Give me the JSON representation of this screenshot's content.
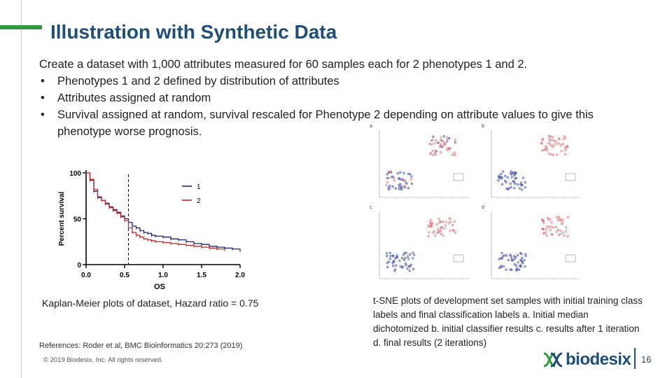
{
  "slide": {
    "title": "Illustration with Synthetic Data",
    "intro": "Create a dataset with 1,000 attributes measured for 60 samples each for 2 phenotypes 1 and 2.",
    "bullets": [
      "Phenotypes 1 and 2 defined by distribution of attributes",
      "Attributes assigned at random",
      "Survival assigned at random, survival rescaled for Phenotype 2 depending on attribute values to give this phenotype worse prognosis."
    ],
    "km_caption": "Kaplan-Meier plots of dataset, Hazard ratio = 0.75",
    "tsne_caption": "t-SNE plots of development set samples with initial training class labels and final classification labels a. Initial median dichotomized   b. initial classifier results c. results after 1 iteration   d. final results (2 iterations)",
    "tsne_panel_labels": [
      "a",
      "b",
      "c",
      "d"
    ],
    "references": "References: Roder et al, BMC Bioinformatics 20:273 (2019)",
    "copyright": "© 2019 Biodesix, Inc. All rights reserved.",
    "logo_text": "biodesix",
    "page_number": "16"
  },
  "colors": {
    "title": "#1f4e79",
    "accent": "#2e9b3e",
    "series1": "#1a237e",
    "series2": "#c62828"
  },
  "chart_data": {
    "type": "line",
    "title": "",
    "xlabel": "OS",
    "ylabel": "Percent survival",
    "xlim": [
      0,
      2.0
    ],
    "ylim": [
      0,
      100
    ],
    "xticks": [
      "0.0",
      "0.5",
      "1.0",
      "1.5",
      "2.0"
    ],
    "yticks": [
      "0",
      "50",
      "100"
    ],
    "median_marker_x": 0.55,
    "legend_placement": "top-right",
    "series": [
      {
        "name": "1",
        "x": [
          0,
          0.05,
          0.1,
          0.15,
          0.2,
          0.25,
          0.3,
          0.35,
          0.4,
          0.45,
          0.5,
          0.55,
          0.6,
          0.65,
          0.7,
          0.75,
          0.8,
          0.85,
          0.9,
          1.0,
          1.1,
          1.2,
          1.3,
          1.4,
          1.5,
          1.6,
          1.7,
          1.8,
          1.9,
          2.0
        ],
        "y": [
          100,
          92,
          80,
          73,
          70,
          67,
          63,
          60,
          57,
          53,
          50,
          46,
          42,
          40,
          37,
          35,
          34,
          32,
          31,
          30,
          28,
          27,
          25,
          23,
          22,
          20,
          19,
          18,
          17,
          15
        ]
      },
      {
        "name": "2",
        "x": [
          0,
          0.05,
          0.1,
          0.15,
          0.2,
          0.25,
          0.3,
          0.35,
          0.4,
          0.45,
          0.5,
          0.55,
          0.6,
          0.65,
          0.7,
          0.75,
          0.8,
          0.85,
          0.9,
          1.0,
          1.1,
          1.2,
          1.3,
          1.4,
          1.5,
          1.6,
          1.7,
          1.8
        ],
        "y": [
          100,
          93,
          82,
          74,
          70,
          66,
          62,
          59,
          56,
          52,
          48,
          40,
          35,
          32,
          30,
          28,
          27,
          26,
          25,
          24,
          23,
          22,
          21,
          20,
          19,
          18,
          17,
          16
        ]
      }
    ]
  }
}
